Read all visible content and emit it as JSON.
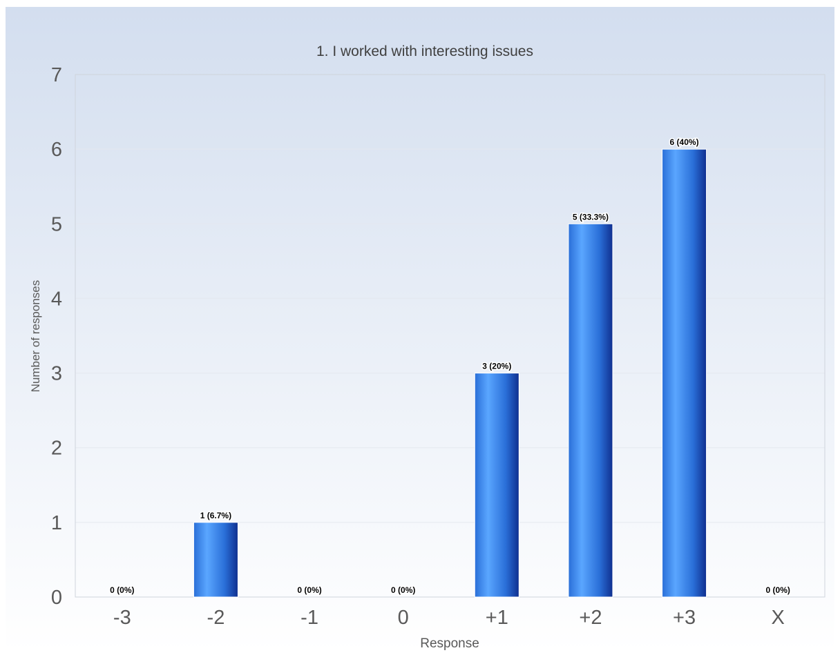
{
  "chart_data": {
    "type": "bar",
    "title": "1. I worked with interesting issues",
    "xlabel": "Response",
    "ylabel": "Number of responses",
    "categories": [
      "-3",
      "-2",
      "-1",
      "0",
      "+1",
      "+2",
      "+3",
      "X"
    ],
    "values": [
      0,
      1,
      0,
      0,
      3,
      5,
      6,
      0
    ],
    "data_labels": [
      "0 (0%)",
      "1 (6.7%)",
      "0 (0%)",
      "0 (0%)",
      "3 (20%)",
      "5 (33.3%)",
      "6 (40%)",
      "0 (0%)"
    ],
    "ylim": [
      0,
      7
    ],
    "yticks": [
      0,
      1,
      2,
      3,
      4,
      5,
      6,
      7
    ],
    "grid": true,
    "legend": "none"
  },
  "colors": {
    "background_top": "#d3deef",
    "background_bottom": "#ffffff",
    "bar_light": "#5aa6ff",
    "bar_mid": "#2a6fd8",
    "bar_dark": "#0f2f8f",
    "text": "#595959",
    "label_text": "#000000",
    "gridline": "#e4e8ef",
    "plot_border": "#cfd4dc"
  }
}
